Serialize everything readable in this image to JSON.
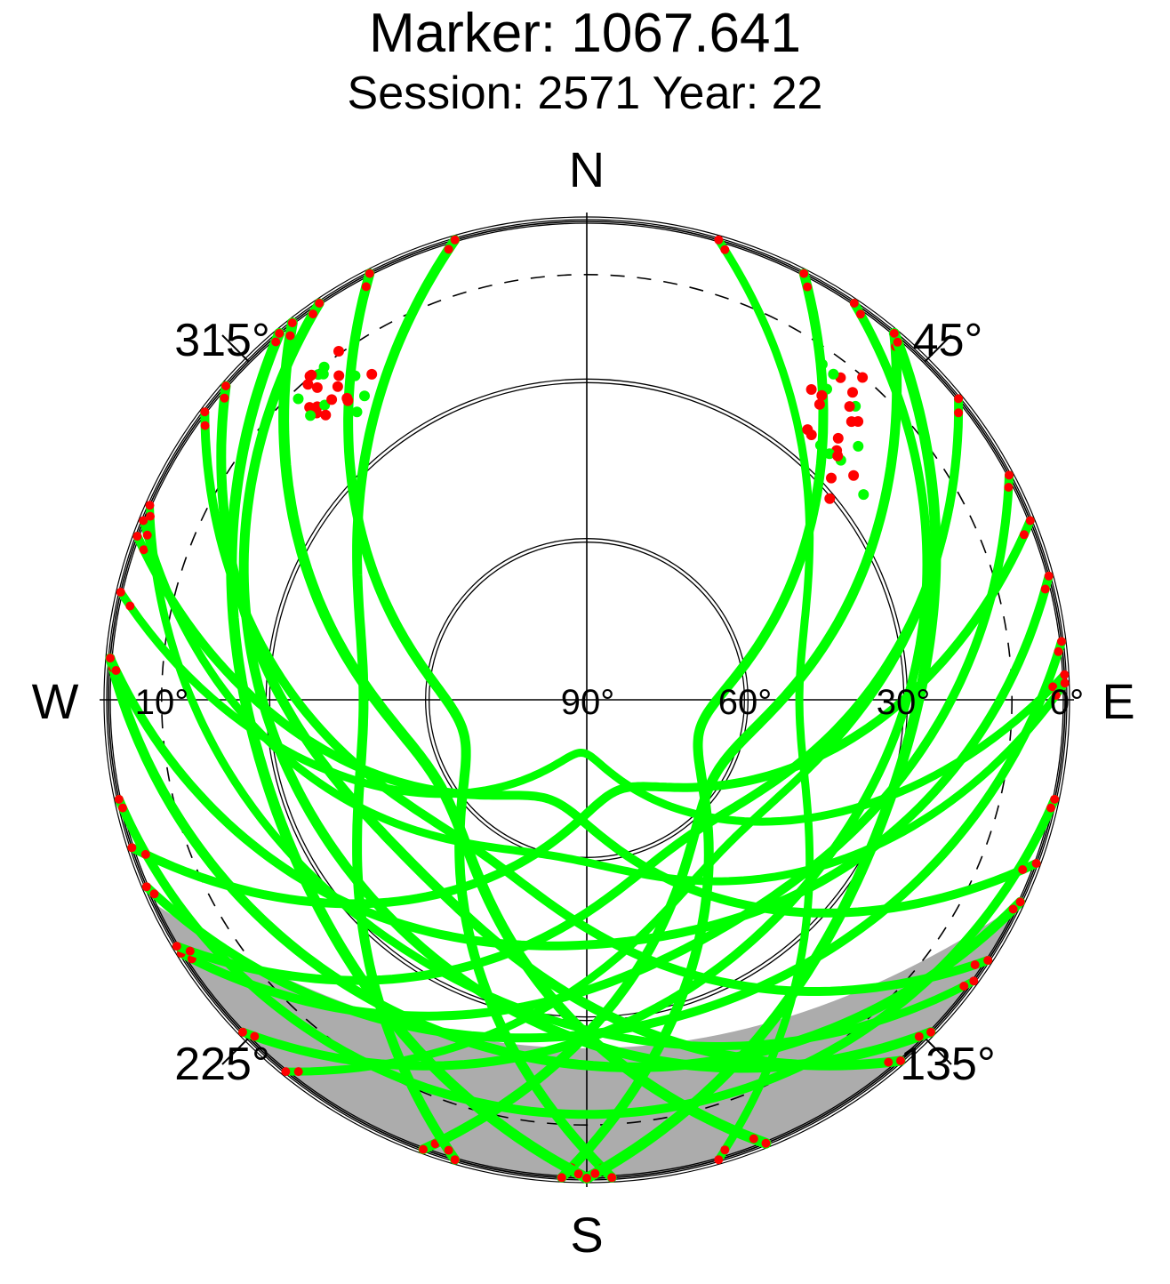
{
  "chart_data": {
    "type": "scatter",
    "projection": "polar-skyplot",
    "title": "Marker: 1067.641",
    "subtitle": "Session: 2571 Year: 22",
    "compass": {
      "north": "N",
      "east": "E",
      "south": "S",
      "west": "W"
    },
    "azimuth_labels": [
      "45°",
      "135°",
      "225°",
      "315°"
    ],
    "elevation_labels": [
      "0°",
      "30°",
      "60°",
      "90°",
      "10°"
    ],
    "elevation_rings": [
      0,
      30,
      60
    ],
    "elevation_mask_deg": 10,
    "azimuth_range": [
      0,
      360
    ],
    "elevation_range": [
      0,
      90
    ],
    "colors": {
      "tracked": "#00ff00",
      "flagged": "#ff0000",
      "grid": "#000000",
      "mask": "#9e9e9e"
    },
    "series": [
      {
        "color": "green"
      },
      {
        "color": "red"
      }
    ],
    "legend": "none"
  }
}
